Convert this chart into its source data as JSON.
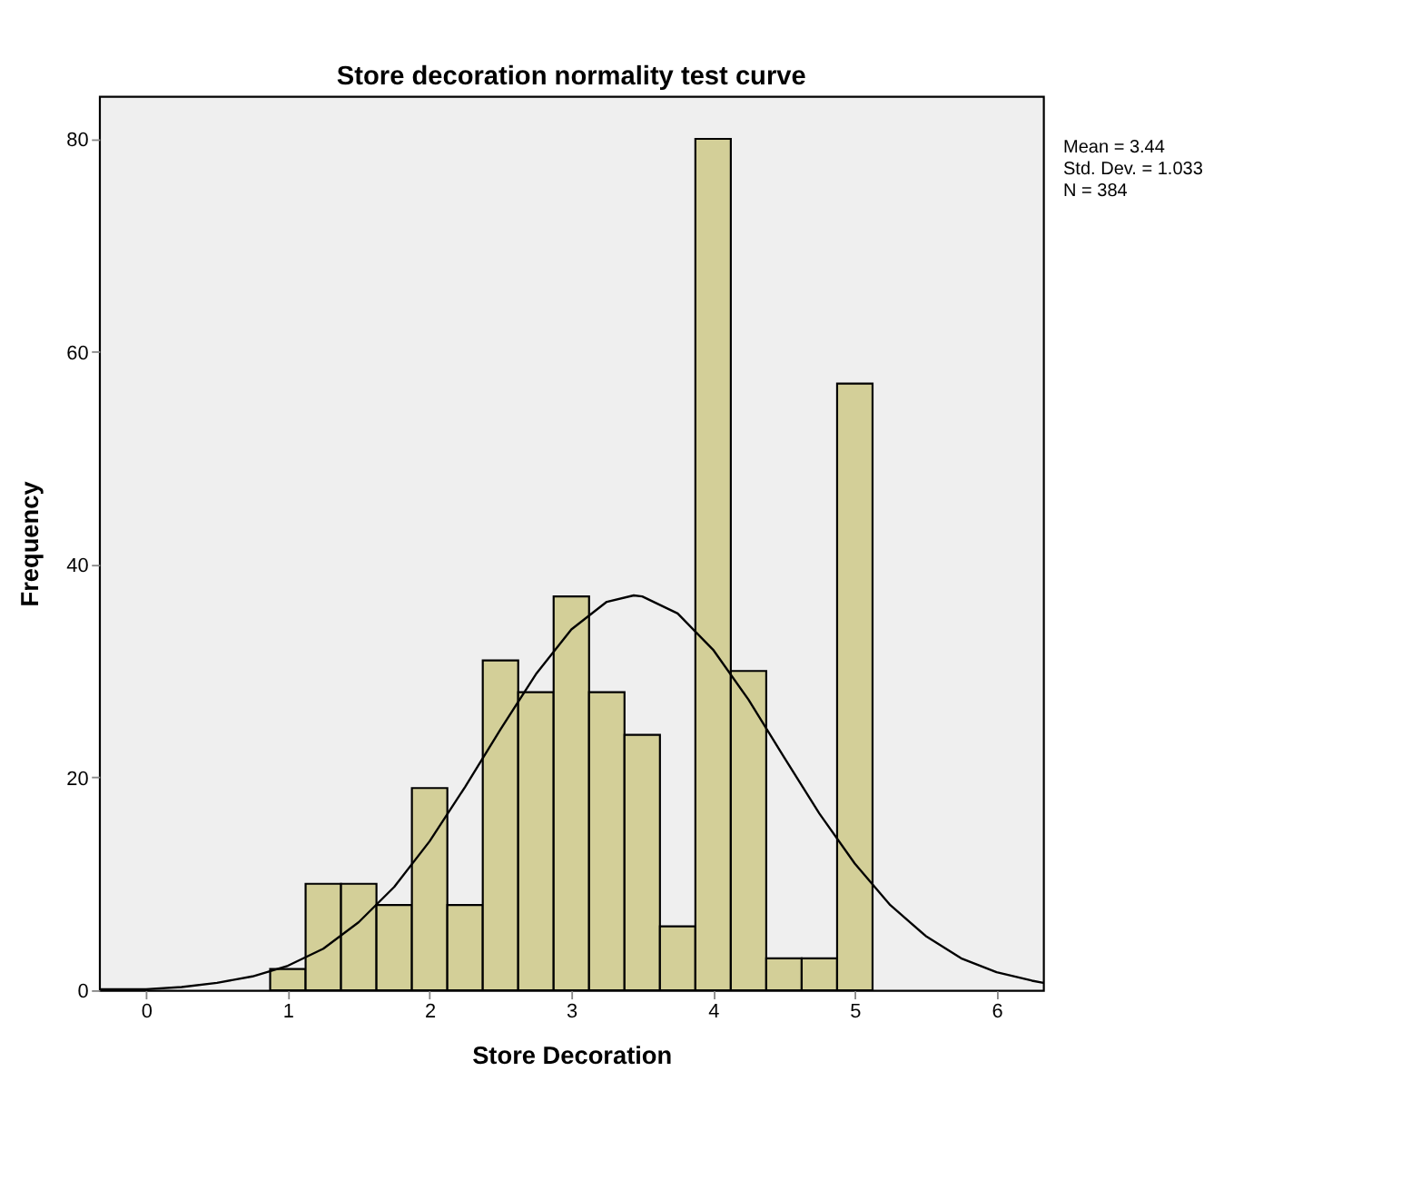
{
  "chart_data": {
    "type": "histogram",
    "title": "Store decoration normality test curve",
    "xlabel": "Store Decoration",
    "ylabel": "Frequency",
    "bins": [
      0.875,
      1.125,
      1.375,
      1.625,
      1.875,
      2.125,
      2.375,
      2.625,
      2.875,
      3.125,
      3.375,
      3.625,
      3.875,
      4.125,
      4.375,
      4.625,
      4.875,
      5.125
    ],
    "values": [
      2,
      10,
      10,
      8,
      19,
      8,
      31,
      28,
      37,
      28,
      24,
      6,
      80,
      30,
      3,
      3,
      57
    ],
    "color": "#d3cf98",
    "series": [
      {
        "type": "line",
        "color": "#000000",
        "x": [
          -0.33,
          -0.25,
          0,
          0.25,
          0.5,
          0.75,
          1,
          1.25,
          1.5,
          1.75,
          2,
          2.25,
          2.5,
          2.75,
          3,
          3.25,
          3.44,
          3.5,
          3.75,
          4,
          4.25,
          4.5,
          4.75,
          5,
          5.25,
          5.5,
          5.75,
          6,
          6.25,
          6.33
        ],
        "values": [
          0.1,
          0.1,
          0.1,
          0.3,
          0.7,
          1.3,
          2.3,
          3.9,
          6.4,
          9.7,
          14,
          19.1,
          24.5,
          29.7,
          33.9,
          36.5,
          37.1,
          37,
          35.4,
          32,
          27.3,
          21.9,
          16.6,
          11.9,
          8,
          5.1,
          3,
          1.7,
          0.9,
          0.7
        ]
      }
    ],
    "xlim": [
      -0.33,
      6.33
    ],
    "xticks": [
      0,
      1,
      2,
      3,
      4,
      5,
      6
    ],
    "ylim": [
      0,
      84
    ],
    "yticks": [
      0,
      20,
      40,
      60,
      80
    ],
    "grid": false,
    "annotations": [
      "Mean = 3.44",
      "Std. Dev. = 1.033",
      "N = 384"
    ]
  }
}
